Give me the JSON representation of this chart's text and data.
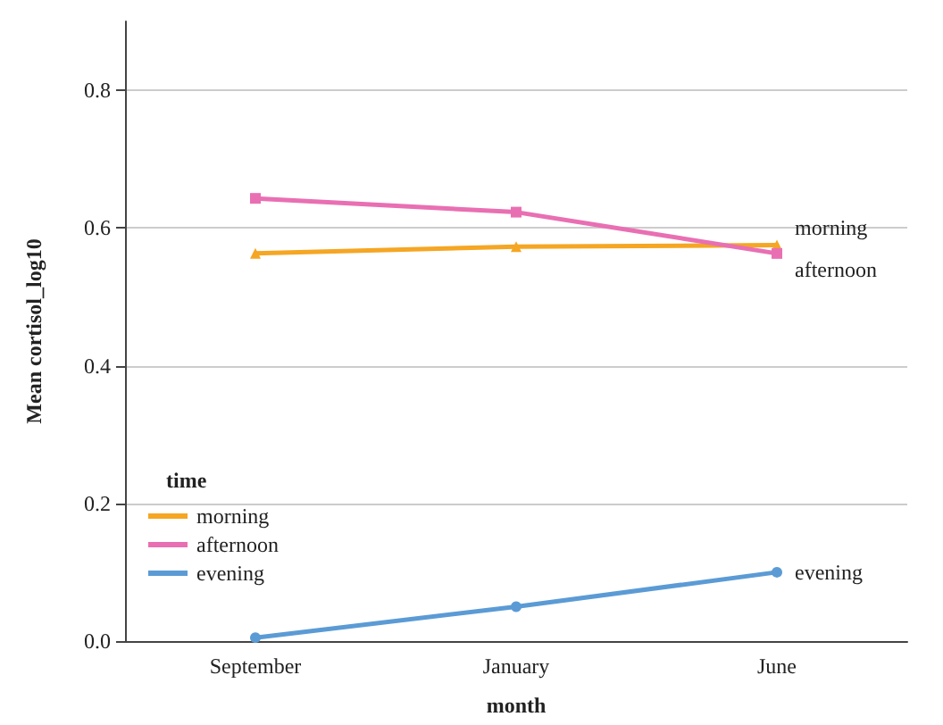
{
  "chart_data": {
    "type": "line",
    "xlabel": "month",
    "ylabel": "Mean cortisol_log10",
    "legend_title": "time",
    "categories": [
      "September",
      "January",
      "June"
    ],
    "series": [
      {
        "name": "morning",
        "color": "#f5a623",
        "marker": "triangle",
        "values": [
          0.563,
          0.573,
          0.575
        ]
      },
      {
        "name": "afternoon",
        "color": "#e96fb3",
        "marker": "square",
        "values": [
          0.643,
          0.623,
          0.563
        ]
      },
      {
        "name": "evening",
        "color": "#5b9bd5",
        "marker": "circle",
        "values": [
          0.005,
          0.05,
          0.1
        ]
      }
    ],
    "ylim": [
      0,
      0.9
    ],
    "yticks": [
      {
        "value": 0,
        "label": "0.0"
      },
      0.2,
      0.4,
      0.6,
      0.8
    ],
    "grid": "y",
    "legend": "bottom left",
    "annotations": [
      {
        "text": "morning",
        "x": "June",
        "y": 0.575
      },
      {
        "text": "afternoon",
        "x": "June",
        "y": 0.555
      },
      {
        "text": "evening",
        "x": "June",
        "y": 0.1
      }
    ]
  }
}
